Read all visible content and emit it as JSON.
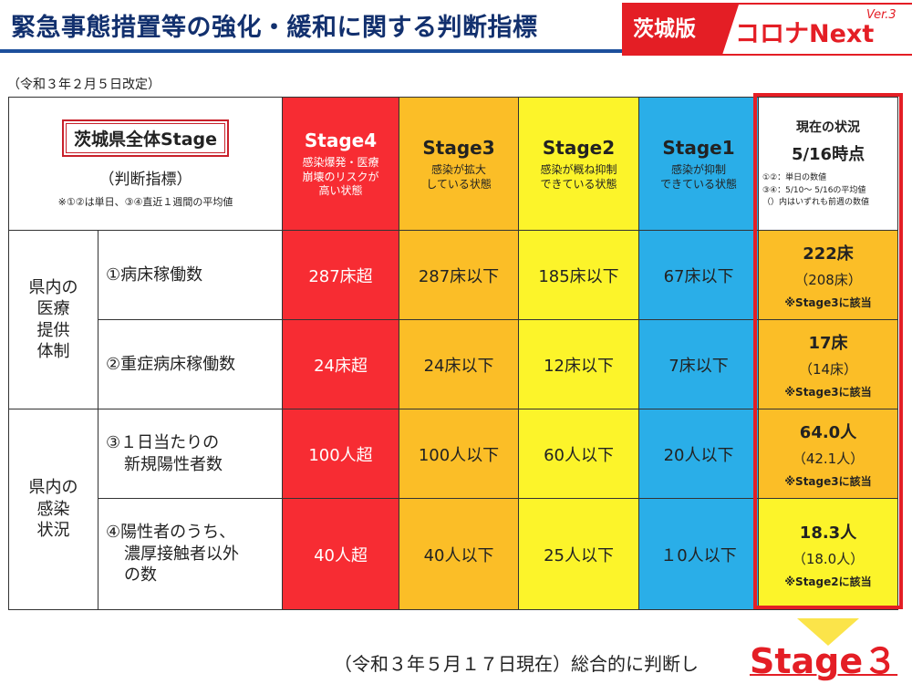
{
  "header": {
    "title": "緊急事態措置等の強化・緩和に関する判断指標",
    "badge_red": "茨城版",
    "badge_text": "コロナNext",
    "badge_version": "Ver.3"
  },
  "revised_note": "（令和３年２月５日改定）",
  "table": {
    "left_header": {
      "title": "茨城県全体Stage",
      "subtitle": "（判断指標）",
      "note": "※①②は単日、③④直近１週間の平均値"
    },
    "stages": [
      {
        "name": "Stage4",
        "desc_1": "感染爆発・医療",
        "desc_2": "崩壊のリスクが",
        "desc_3": "高い状態"
      },
      {
        "name": "Stage3",
        "desc_1": "感染が拡大",
        "desc_2": "している状態"
      },
      {
        "name": "Stage2",
        "desc_1": "感染が概ね抑制",
        "desc_2": "できている状態"
      },
      {
        "name": "Stage1",
        "desc_1": "感染が抑制",
        "desc_2": "できている状態"
      }
    ],
    "current": {
      "title": "現在の状況",
      "date": "5/16時点",
      "note_1": "①②：単日の数値",
      "note_2": "③④：5/10～ 5/16の平均値",
      "note_3": "（）内はいずれも前週の数値"
    },
    "categories": [
      {
        "line_1": "県内の",
        "line_2": "医療",
        "line_3": "提供",
        "line_4": "体制"
      },
      {
        "line_1": "県内の",
        "line_2": "感染",
        "line_3": "状況"
      }
    ],
    "rows": [
      {
        "indicator_1": "①病床稼働数",
        "indicator_2": "",
        "s4": "287床超",
        "s3": "287床以下",
        "s2": "185床以下",
        "s1": "67床以下",
        "current_value": "222床",
        "current_prev": "（208床）",
        "current_note": "※Stage3に該当"
      },
      {
        "indicator_1": "②重症病床稼働数",
        "indicator_2": "",
        "s4": "24床超",
        "s3": "24床以下",
        "s2": "12床以下",
        "s1": "7床以下",
        "current_value": "17床",
        "current_prev": "（14床）",
        "current_note": "※Stage3に該当"
      },
      {
        "indicator_1": "③１日当たりの",
        "indicator_2": "新規陽性者数",
        "s4": "100人超",
        "s3": "100人以下",
        "s2": "60人以下",
        "s1": "20人以下",
        "current_value": "64.0人",
        "current_prev": "（42.1人）",
        "current_note": "※Stage3に該当"
      },
      {
        "indicator_1": "④陽性者のうち、",
        "indicator_2": "濃厚接触者以外",
        "indicator_3": "の数",
        "s4": "40人超",
        "s3": "40人以下",
        "s2": "25人以下",
        "s1": "１0人以下",
        "current_value": "18.3人",
        "current_prev": "（18.0人）",
        "current_note": "※Stage2に該当"
      }
    ]
  },
  "footer": {
    "text": "（令和３年５月１７日現在）総合的に判断し",
    "stage": "Stage３"
  },
  "colors": {
    "stage4": "#f72c33",
    "stage3": "#fbbe27",
    "stage2": "#fcf42a",
    "stage1": "#2aaee8",
    "accent_red": "#e41e25",
    "title_blue": "#12306e"
  }
}
